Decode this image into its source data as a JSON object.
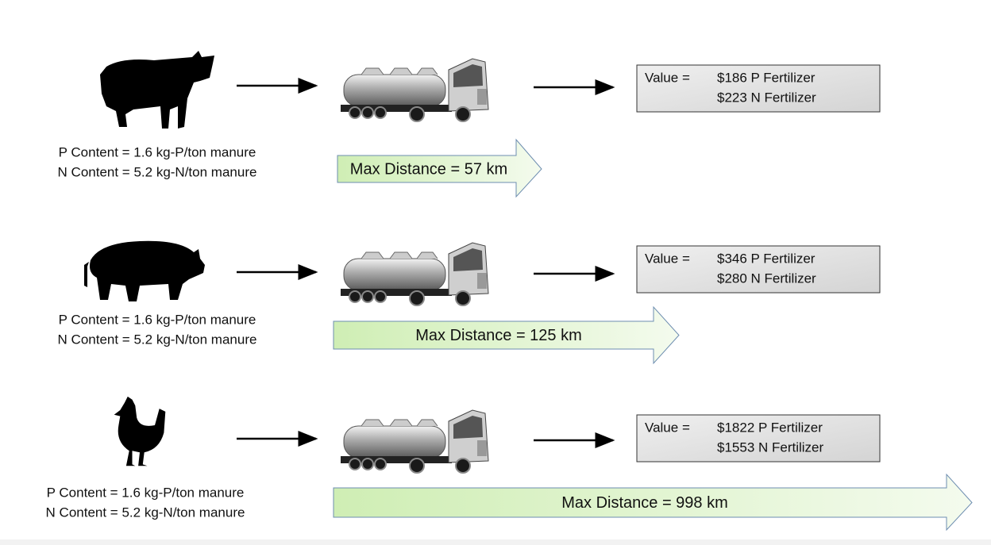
{
  "rows": [
    {
      "p_content": "P Content = 1.6 kg-P/ton manure",
      "n_content": "N Content = 5.2 kg-N/ton manure",
      "value_label": "Value =",
      "p_value": "$186 P Fertilizer",
      "n_value": "$223 N Fertilizer",
      "max_distance": "Max Distance = 57 km"
    },
    {
      "p_content": "P Content = 1.6 kg-P/ton manure",
      "n_content": "N Content = 5.2 kg-N/ton manure",
      "value_label": "Value =",
      "p_value": "$346 P Fertilizer",
      "n_value": "$280 N Fertilizer",
      "max_distance": "Max Distance = 125 km"
    },
    {
      "p_content": "P Content = 1.6 kg-P/ton manure",
      "n_content": "N Content = 5.2 kg-N/ton manure",
      "value_label": "Value =",
      "p_value": "$1822 P Fertilizer",
      "n_value": "$1553 N Fertilizer",
      "max_distance": "Max Distance = 998 km"
    }
  ]
}
